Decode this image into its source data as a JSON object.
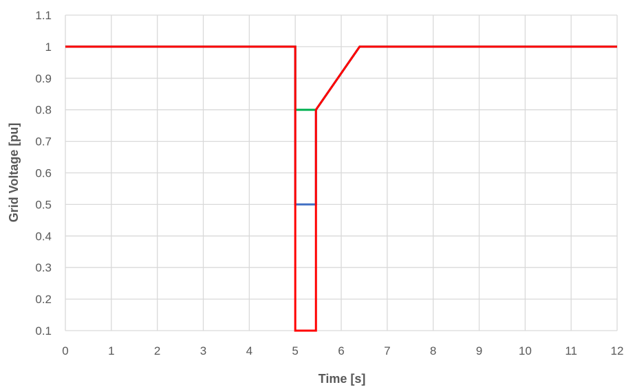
{
  "chart_data": {
    "type": "line",
    "title": "",
    "xlabel": "Time [s]",
    "ylabel": "Grid Voltage [pu]",
    "xlim": [
      0,
      12
    ],
    "ylim": [
      0.1,
      1.1
    ],
    "x_ticks": [
      "0",
      "1",
      "2",
      "3",
      "4",
      "5",
      "6",
      "7",
      "8",
      "9",
      "10",
      "11",
      "12"
    ],
    "y_ticks": [
      "0.1",
      "0.2",
      "0.3",
      "0.4",
      "0.5",
      "0.6",
      "0.7",
      "0.8",
      "0.9",
      "1",
      "1.1"
    ],
    "grid": true,
    "legend": "none",
    "series": [
      {
        "color": "#00b050",
        "points": [
          [
            0,
            1
          ],
          [
            5,
            1
          ],
          [
            5,
            0.8
          ],
          [
            5.45,
            0.8
          ],
          [
            6.4,
            1
          ],
          [
            12,
            1
          ]
        ]
      },
      {
        "color": "#4472c4",
        "points": [
          [
            0,
            1
          ],
          [
            5,
            1
          ],
          [
            5,
            0.5
          ],
          [
            5.45,
            0.5
          ],
          [
            5.45,
            0.8
          ],
          [
            6.4,
            1
          ],
          [
            12,
            1
          ]
        ]
      },
      {
        "color": "#ff0000",
        "points": [
          [
            0,
            1
          ],
          [
            5,
            1
          ],
          [
            5,
            0.1
          ],
          [
            5.45,
            0.1
          ],
          [
            5.45,
            0.8
          ],
          [
            6.4,
            1
          ],
          [
            12,
            1
          ]
        ]
      }
    ]
  }
}
